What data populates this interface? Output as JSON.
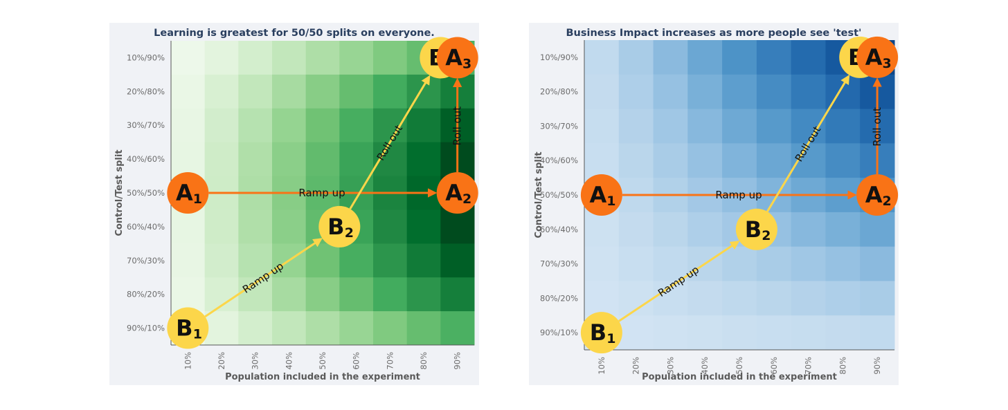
{
  "chart_data": [
    {
      "type": "heatmap",
      "title": "Learning is greatest for 50/50 splits on everyone.",
      "xlabel": "Population included in the experiment",
      "ylabel": "Control/Test split",
      "x_categories": [
        "10%",
        "20%",
        "30%",
        "40%",
        "50%",
        "60%",
        "70%",
        "80%",
        "90%"
      ],
      "y_categories": [
        "10%/90%",
        "20%/80%",
        "30%/70%",
        "40%/60%",
        "50%/50%",
        "60%/40%",
        "70%/30%",
        "80%/20%",
        "90%/10%"
      ],
      "metric": "learning",
      "colorscale": [
        "#f7fcf5",
        "#e5f5e0",
        "#c7e9c0",
        "#a1d99b",
        "#74c476",
        "#41ab5d",
        "#238b45",
        "#006d2c",
        "#00441b"
      ],
      "color_range": [
        0,
        1.5
      ],
      "nodes": [
        {
          "letter": "A",
          "sub": "1",
          "x": "10%",
          "y": "50%/50%",
          "color": "#f97316"
        },
        {
          "letter": "A",
          "sub": "2",
          "x": "90%",
          "y": "50%/50%",
          "color": "#f97316"
        },
        {
          "letter": "A",
          "sub": "3",
          "x": "90%",
          "y": "10%/90%",
          "color": "#f97316"
        },
        {
          "letter": "B",
          "sub": "1",
          "x": "10%",
          "y": "90%/10%",
          "color": "#fcd64a"
        },
        {
          "letter": "B",
          "sub": "2",
          "x": "55%",
          "y": "60%/40%",
          "color": "#fcd64a"
        },
        {
          "letter": "B",
          "sub": "3",
          "x": "85%",
          "y": "10%/90%",
          "color": "#fcd64a"
        }
      ],
      "arrows": [
        {
          "from": "A1",
          "to": "A2",
          "label": "Ramp up",
          "color": "#f97316"
        },
        {
          "from": "A2",
          "to": "A3",
          "label": "Roll out",
          "color": "#f97316"
        },
        {
          "from": "B1",
          "to": "B2",
          "label": "Ramp up",
          "color": "#fcd64a"
        },
        {
          "from": "B2",
          "to": "B3",
          "label": "Roll out",
          "color": "#fcd64a"
        }
      ]
    },
    {
      "type": "heatmap",
      "title": "Business Impact increases as more people see 'test'",
      "xlabel": "Population included in the experiment",
      "ylabel": "Control/Test split",
      "x_categories": [
        "10%",
        "20%",
        "30%",
        "40%",
        "50%",
        "60%",
        "70%",
        "80%",
        "90%"
      ],
      "y_categories": [
        "10%/90%",
        "20%/80%",
        "30%/70%",
        "40%/60%",
        "50%/50%",
        "60%/40%",
        "70%/30%",
        "80%/20%",
        "90%/10%"
      ],
      "metric": "impact",
      "colorscale": [
        "#d6e6f4",
        "#bcd7ec",
        "#9cc4e4",
        "#72acd6",
        "#4d93c7",
        "#3179b8",
        "#1c62a8",
        "#0d4b91",
        "#08306b"
      ],
      "color_range": [
        0,
        0.9
      ],
      "nodes": [
        {
          "letter": "A",
          "sub": "1",
          "x": "10%",
          "y": "50%/50%",
          "color": "#f97316"
        },
        {
          "letter": "A",
          "sub": "2",
          "x": "90%",
          "y": "50%/50%",
          "color": "#f97316"
        },
        {
          "letter": "A",
          "sub": "3",
          "x": "90%",
          "y": "10%/90%",
          "color": "#f97316"
        },
        {
          "letter": "B",
          "sub": "1",
          "x": "10%",
          "y": "90%/10%",
          "color": "#fcd64a"
        },
        {
          "letter": "B",
          "sub": "2",
          "x": "55%",
          "y": "60%/40%",
          "color": "#fcd64a"
        },
        {
          "letter": "B",
          "sub": "3",
          "x": "85%",
          "y": "10%/90%",
          "color": "#fcd64a"
        }
      ],
      "arrows": [
        {
          "from": "A1",
          "to": "A2",
          "label": "Ramp up",
          "color": "#f97316"
        },
        {
          "from": "A2",
          "to": "A3",
          "label": "Roll out",
          "color": "#f97316"
        },
        {
          "from": "B1",
          "to": "B2",
          "label": "Ramp up",
          "color": "#fcd64a"
        },
        {
          "from": "B2",
          "to": "B3",
          "label": "Roll out",
          "color": "#fcd64a"
        }
      ]
    }
  ]
}
